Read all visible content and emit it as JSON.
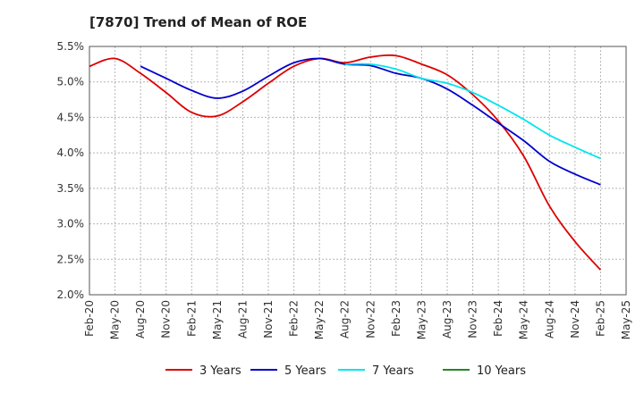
{
  "chart_data": {
    "type": "line",
    "title": "[7870]  Trend of Mean of ROE",
    "xlabel": "",
    "ylabel": "",
    "ylim": [
      2.0,
      5.5
    ],
    "yticks": [
      2.0,
      2.5,
      3.0,
      3.5,
      4.0,
      4.5,
      5.0,
      5.5
    ],
    "ytick_labels": [
      "2.0%",
      "2.5%",
      "3.0%",
      "3.5%",
      "4.0%",
      "4.5%",
      "5.0%",
      "5.5%"
    ],
    "x_categories": [
      "Feb-20",
      "May-20",
      "Aug-20",
      "Nov-20",
      "Feb-21",
      "May-21",
      "Aug-21",
      "Nov-21",
      "Feb-22",
      "May-22",
      "Aug-22",
      "Nov-22",
      "Feb-23",
      "May-23",
      "Aug-23",
      "Nov-23",
      "Feb-24",
      "May-24",
      "Aug-24",
      "Nov-24",
      "Feb-25",
      "May-25"
    ],
    "grid": true,
    "legend_position": "bottom",
    "series": [
      {
        "name": "3 Years",
        "color": "#dd0000",
        "start_index": 0,
        "values": [
          5.22,
          5.33,
          5.12,
          4.85,
          4.57,
          4.52,
          4.72,
          4.98,
          5.22,
          5.33,
          5.27,
          5.35,
          5.37,
          5.25,
          5.1,
          4.82,
          4.45,
          3.95,
          3.25,
          2.75,
          2.35
        ]
      },
      {
        "name": "5 Years",
        "color": "#0000cc",
        "start_index": 2,
        "values": [
          5.22,
          5.05,
          4.88,
          4.77,
          4.87,
          5.08,
          5.27,
          5.33,
          5.25,
          5.23,
          5.12,
          5.05,
          4.9,
          4.67,
          4.42,
          4.17,
          3.88,
          3.7,
          3.55
        ]
      },
      {
        "name": "7 Years",
        "color": "#00e5ee",
        "start_index": 10,
        "values": [
          5.25,
          5.25,
          5.18,
          5.05,
          4.98,
          4.85,
          4.67,
          4.47,
          4.25,
          4.08,
          3.92
        ]
      },
      {
        "name": "10 Years",
        "color": "#228822",
        "start_index": 0,
        "values": []
      }
    ]
  }
}
